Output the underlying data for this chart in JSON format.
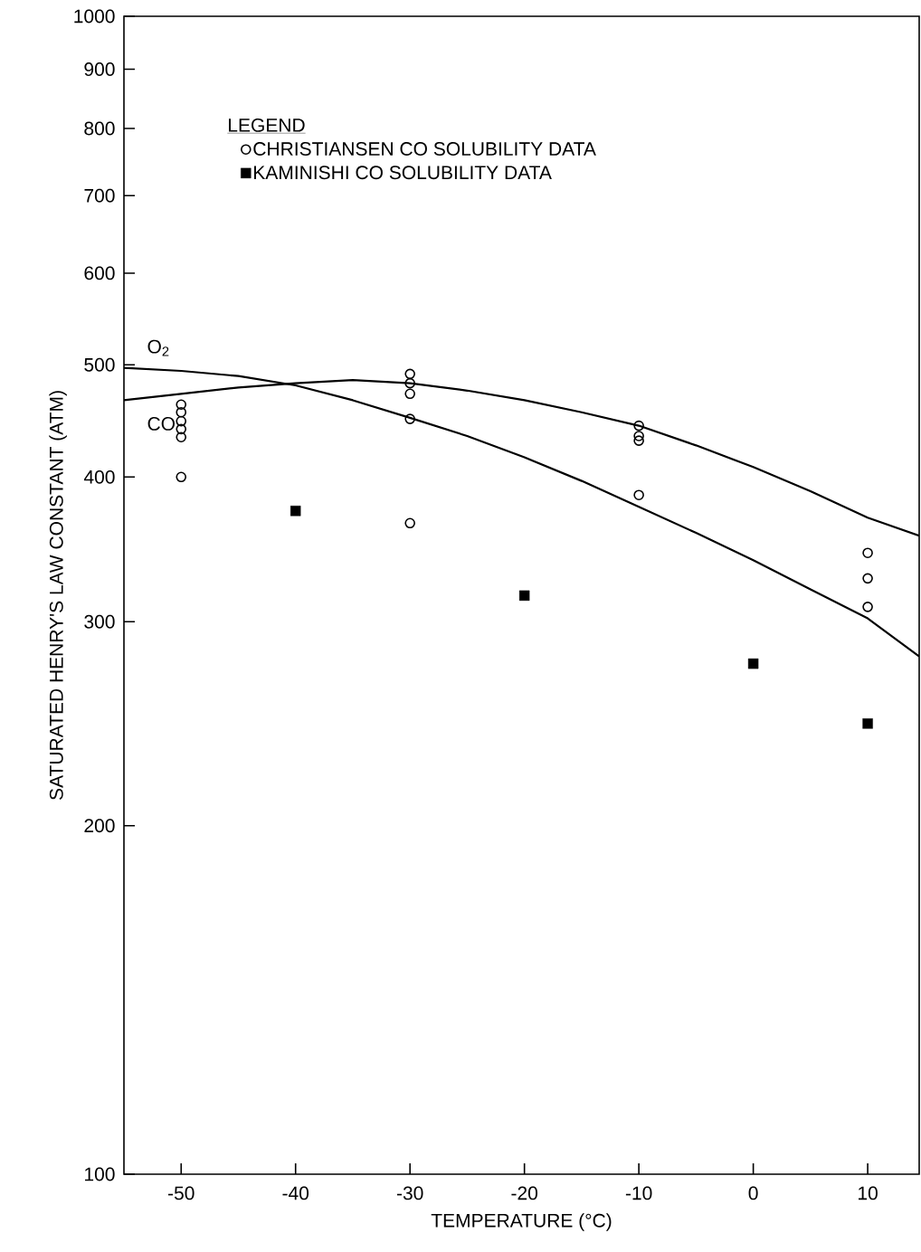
{
  "chart_data": {
    "type": "scatter",
    "xlabel": "TEMPERATURE (°C)",
    "ylabel": "SATURATED HENRY'S LAW CONSTANT (ATM)",
    "legend_title": "LEGEND",
    "legend": "top left",
    "log": "y",
    "xlim": [
      -55,
      14.5
    ],
    "xticks": [
      -50,
      -40,
      -30,
      -20,
      -10,
      0,
      10
    ],
    "ylim": [
      100,
      1000
    ],
    "yticks": [
      100,
      200,
      300,
      400,
      500,
      600,
      700,
      800,
      900,
      1000
    ],
    "annotations": [
      "O$_{2}$",
      "CO"
    ],
    "series": [
      {
        "name": "CHRISTIANSEN CO SOLUBILITY DATA",
        "marker": "circle",
        "color": "#000000",
        "x": [
          -50,
          -50,
          -50,
          -50,
          -50,
          -50,
          -30,
          -30,
          -30,
          -30,
          -30,
          -10,
          -10,
          -10,
          -10,
          10,
          10,
          10
        ],
        "values": [
          462,
          455,
          447,
          440,
          433,
          400,
          491,
          482,
          472,
          449,
          365,
          443,
          434,
          430,
          386,
          344,
          327,
          309
        ]
      },
      {
        "name": "KAMINISHI CO SOLUBILITY DATA",
        "marker": "square",
        "color": "#000000",
        "x": [
          -40,
          -20,
          0,
          10
        ],
        "values": [
          374,
          316,
          276,
          245
        ]
      },
      {
        "type": "line",
        "marker": "none",
        "color": "#000000",
        "x": [
          -55,
          -50,
          -45,
          -40,
          -35,
          -30,
          -25,
          -20,
          -15,
          -10,
          -5,
          0,
          5,
          10,
          14.5
        ],
        "values": [
          497,
          494,
          489,
          480,
          466,
          450,
          434,
          416,
          397,
          377,
          358,
          339,
          320,
          302,
          280
        ]
      },
      {
        "type": "line",
        "marker": "none",
        "color": "#000000",
        "x": [
          -55,
          -50,
          -45,
          -40,
          -35,
          -30,
          -25,
          -20,
          -15,
          -10,
          -5,
          0,
          5,
          10,
          14.5
        ],
        "values": [
          466,
          472,
          478,
          482,
          485,
          482,
          475,
          466,
          455,
          443,
          426,
          408,
          389,
          369,
          356
        ]
      }
    ]
  }
}
